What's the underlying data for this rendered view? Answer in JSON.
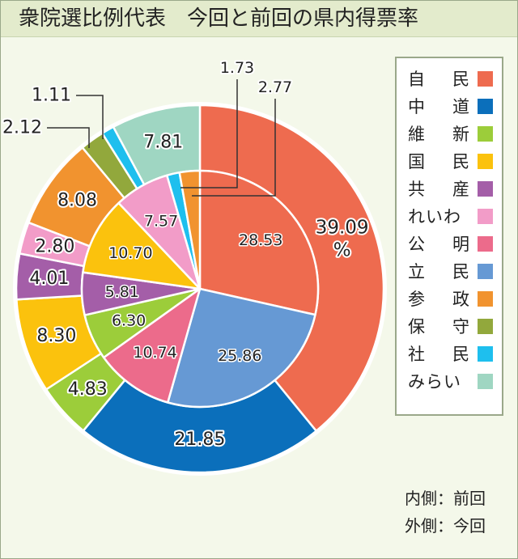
{
  "title": "衆院選比例代表　今回と前回の県内得票率",
  "note": {
    "inner": "内側：前回",
    "outer": "外側：今回"
  },
  "chart_data": {
    "type": "pie",
    "subtype": "double-donut",
    "start_angle": "12 o'clock",
    "direction": "clockwise",
    "legend_position": "right",
    "categories": [
      "自　民",
      "中　道",
      "維　新",
      "国　民",
      "共　産",
      "れいわ",
      "公　明",
      "立　民",
      "参　政",
      "保　守",
      "社　民",
      "みらい"
    ],
    "colors": [
      "#ee6b4f",
      "#0b6fbb",
      "#9ccd3a",
      "#fbc20d",
      "#a45ea8",
      "#f29cc8",
      "#ec6b8b",
      "#6699d4",
      "#f1932f",
      "#92a83c",
      "#1ebfee",
      "#9fd6c2"
    ],
    "series": [
      {
        "name": "外側：今回",
        "slices": [
          {
            "category": "自　民",
            "value": 39.09,
            "label": "39.09 %"
          },
          {
            "category": "中　道",
            "value": 21.85,
            "label": "21.85"
          },
          {
            "category": "維　新",
            "value": 4.83,
            "label": "4.83"
          },
          {
            "category": "国　民",
            "value": 8.3,
            "label": "8.30"
          },
          {
            "category": "共　産",
            "value": 4.01,
            "label": "4.01"
          },
          {
            "category": "れいわ",
            "value": 2.8,
            "label": "2.80"
          },
          {
            "category": "参　政",
            "value": 8.08,
            "label": "8.08"
          },
          {
            "category": "保　守",
            "value": 2.12,
            "label": "2.12"
          },
          {
            "category": "社　民",
            "value": 1.11,
            "label": "1.11"
          },
          {
            "category": "みらい",
            "value": 7.81,
            "label": "7.81"
          }
        ]
      },
      {
        "name": "内側：前回",
        "slices": [
          {
            "category": "自　民",
            "value": 28.53,
            "label": "28.53"
          },
          {
            "category": "立　民",
            "value": 25.86,
            "label": "25.86"
          },
          {
            "category": "公　明",
            "value": 10.74,
            "label": "10.74"
          },
          {
            "category": "維　新",
            "value": 6.3,
            "label": "6.30"
          },
          {
            "category": "共　産",
            "value": 5.81,
            "label": "5.81"
          },
          {
            "category": "国　民",
            "value": 10.7,
            "label": "10.70"
          },
          {
            "category": "れいわ",
            "value": 7.57,
            "label": "7.57"
          },
          {
            "category": "社　民",
            "value": 1.73,
            "label": "1.73"
          },
          {
            "category": "参　政",
            "value": 2.77,
            "label": "2.77"
          }
        ]
      }
    ]
  }
}
